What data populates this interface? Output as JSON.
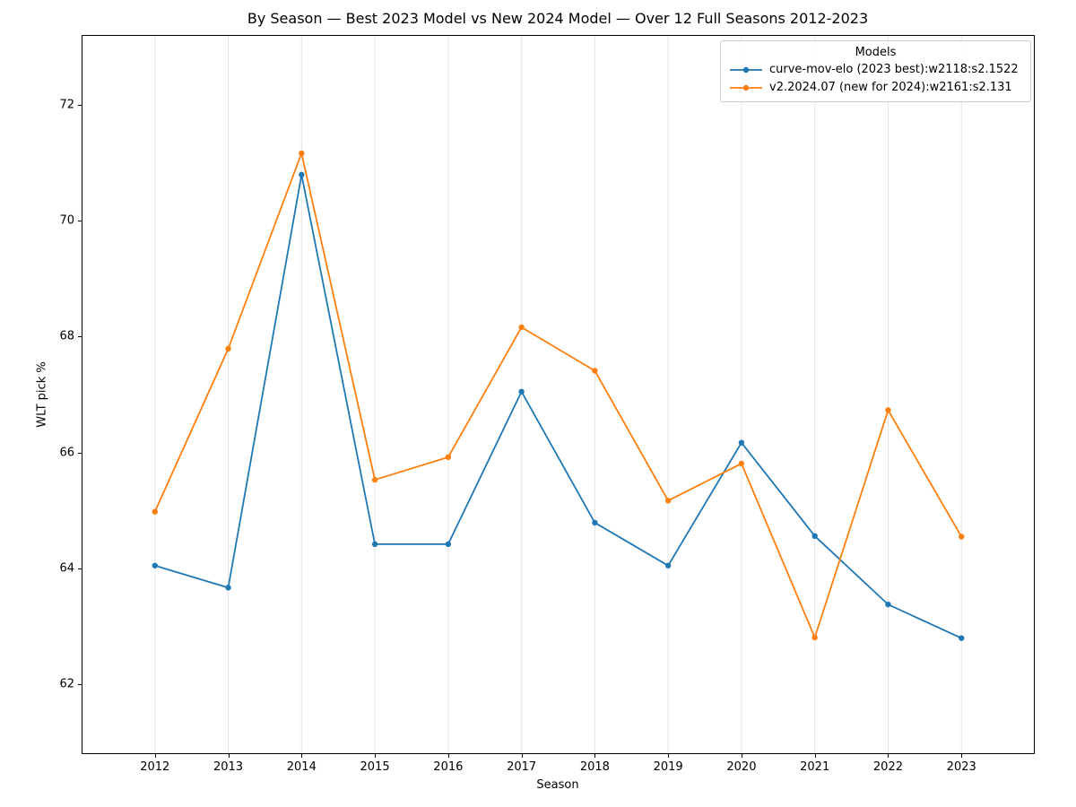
{
  "chart_data": {
    "type": "line",
    "title": "By Season — Best 2023 Model vs New 2024 Model — Over 12 Full Seasons 2012-2023",
    "xlabel": "Season",
    "ylabel": "WLT pick %",
    "legend_title": "Models",
    "legend_position": "upper right",
    "grid": "vertical-only",
    "x": [
      2012,
      2013,
      2014,
      2015,
      2016,
      2017,
      2018,
      2019,
      2020,
      2021,
      2022,
      2023
    ],
    "series": [
      {
        "name": "curve-mov-elo (2023 best):w2118:s2.1522",
        "color": "#1f77b4",
        "values": [
          64.05,
          63.67,
          70.79,
          64.42,
          64.42,
          67.05,
          64.79,
          64.05,
          66.17,
          64.56,
          63.38,
          62.8
        ]
      },
      {
        "name": "v2.2024.07 (new for 2024):w2161:s2.131",
        "color": "#ff7f0e",
        "values": [
          64.98,
          67.79,
          71.16,
          65.53,
          65.92,
          68.16,
          67.41,
          65.17,
          65.81,
          62.81,
          66.73,
          64.55
        ]
      }
    ],
    "xlim": [
      2011,
      2024
    ],
    "ylim": [
      60.8,
      73.2
    ],
    "yticks": [
      62,
      64,
      66,
      68,
      70,
      72
    ],
    "grid_color": "#e5e5e5",
    "spine_color": "#000000"
  }
}
